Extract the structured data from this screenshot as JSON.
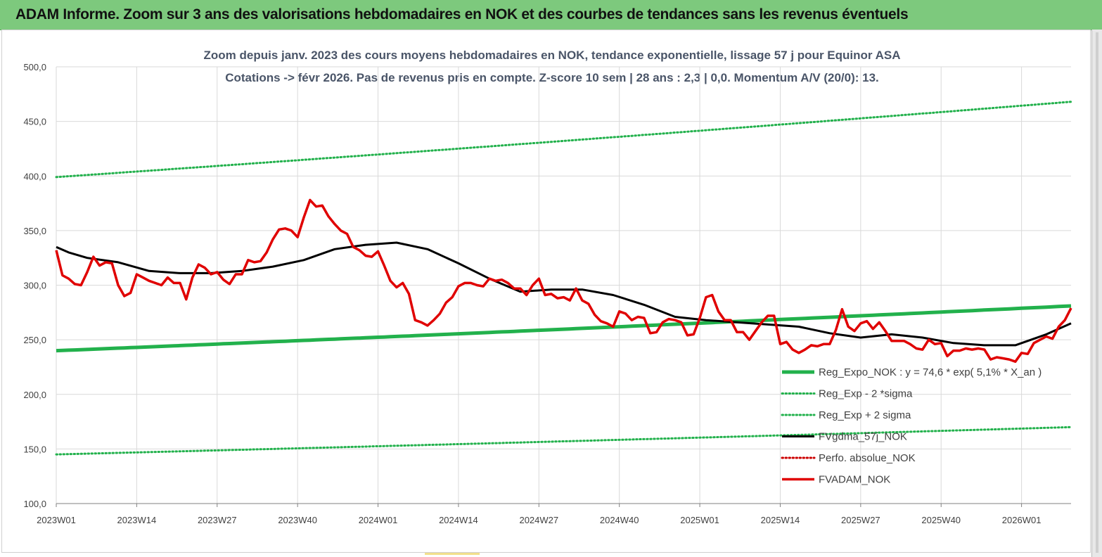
{
  "banner": {
    "title": "ADAM Informe. Zoom sur 3 ans des valorisations hebdomadaires en NOK et des courbes de tendances sans les revenus éventuels"
  },
  "chart_data": {
    "type": "line",
    "title_lines": [
      "Zoom depuis janv. 2023 des cours moyens hebdomadaires en NOK, tendance exponentielle, lissage 57 j pour Equinor ASA",
      "Cotations -> févr 2026.  Pas de revenus pris en compte. Z-score 10 sem  | 28 ans : 2,3 | 0,0. Momentum A/V (20/0): 13."
    ],
    "ylim": [
      100,
      500
    ],
    "yticks": [
      "100,0",
      "150,0",
      "200,0",
      "250,0",
      "300,0",
      "350,0",
      "400,0",
      "450,0",
      "500,0"
    ],
    "xticks": [
      "2023W01",
      "2023W14",
      "2023W27",
      "2023W40",
      "2024W01",
      "2024W14",
      "2024W27",
      "2024W40",
      "2025W01",
      "2025W14",
      "2025W27",
      "2025W40",
      "2026W01"
    ],
    "week_count": 164,
    "grid": true,
    "legend_position": "bottom-right",
    "series": [
      {
        "name": "Reg_Expo_NOK : y = 74,6 * exp( 5,1% *  X_an )",
        "color": "#22b14c",
        "style": "solid-thick",
        "x": [
          0,
          164
        ],
        "y": [
          240,
          281
        ]
      },
      {
        "name": "Reg_Exp - 2 *sigma",
        "color": "#22b14c",
        "style": "dotted",
        "x": [
          0,
          164
        ],
        "y": [
          145,
          170
        ]
      },
      {
        "name": "Reg_Exp + 2 sigma",
        "color": "#22b14c",
        "style": "dotted",
        "x": [
          0,
          164
        ],
        "y": [
          399,
          468
        ]
      },
      {
        "name": "FVgdma_57j_NOK",
        "color": "#000000",
        "style": "solid",
        "x": [
          0,
          2,
          5,
          10,
          15,
          20,
          25,
          30,
          35,
          40,
          45,
          50,
          55,
          60,
          65,
          70,
          75,
          80,
          85,
          90,
          95,
          100,
          105,
          110,
          115,
          120,
          125,
          130,
          135,
          140,
          145,
          150,
          155,
          160,
          164
        ],
        "y": [
          335,
          330,
          325,
          321,
          313,
          311,
          311,
          313,
          317,
          323,
          333,
          337,
          339,
          333,
          320,
          306,
          294,
          296,
          296,
          291,
          282,
          271,
          268,
          266,
          264,
          262,
          256,
          252,
          255,
          252,
          247,
          245,
          245,
          255,
          265
        ]
      },
      {
        "name": "Perfo. absolue_NOK",
        "color": "#cc0000",
        "style": "dotted",
        "x": [],
        "y": []
      },
      {
        "name": "FVADAM_NOK",
        "color": "#e00000",
        "style": "solid-thick",
        "x": [
          0,
          1,
          2,
          3,
          4,
          5,
          6,
          7,
          8,
          9,
          10,
          11,
          12,
          13,
          14,
          15,
          16,
          17,
          18,
          19,
          20,
          21,
          22,
          23,
          24,
          25,
          26,
          27,
          28,
          29,
          30,
          31,
          32,
          33,
          34,
          35,
          36,
          37,
          38,
          39,
          40,
          41,
          42,
          43,
          44,
          45,
          46,
          47,
          48,
          49,
          50,
          51,
          52,
          53,
          54,
          55,
          56,
          57,
          58,
          59,
          60,
          61,
          62,
          63,
          64,
          65,
          66,
          67,
          68,
          69,
          70,
          71,
          72,
          73,
          74,
          75,
          76,
          77,
          78,
          79,
          80,
          81,
          82,
          83,
          84,
          85,
          86,
          87,
          88,
          89,
          90,
          91,
          92,
          93,
          94,
          95,
          96,
          97,
          98,
          99,
          100,
          101,
          102,
          103,
          104,
          105,
          106,
          107,
          108,
          109,
          110,
          111,
          112,
          113,
          114,
          115,
          116,
          117,
          118,
          119,
          120,
          121,
          122,
          123,
          124,
          125,
          126,
          127,
          128,
          129,
          130,
          131,
          132,
          133,
          134,
          135,
          136,
          137,
          138,
          139,
          140,
          141,
          142,
          143,
          144,
          145,
          146,
          147,
          148,
          149,
          150,
          151,
          152,
          153,
          154,
          155,
          156,
          157,
          158,
          159,
          160,
          161,
          162,
          163,
          164
        ],
        "y": [
          332,
          309,
          306,
          301,
          300,
          312,
          326,
          318,
          321,
          320,
          300,
          290,
          293,
          310,
          307,
          304,
          302,
          300,
          307,
          302,
          302,
          287,
          307,
          319,
          316,
          310,
          312,
          305,
          301,
          310,
          310,
          323,
          321,
          322,
          330,
          342,
          351,
          352,
          350,
          344,
          362,
          378,
          372,
          373,
          363,
          356,
          350,
          347,
          335,
          332,
          327,
          326,
          331,
          318,
          304,
          298,
          302,
          292,
          268,
          266,
          263,
          268,
          274,
          284,
          289,
          299,
          302,
          302,
          300,
          299,
          306,
          304,
          305,
          302,
          297,
          297,
          291,
          300,
          306,
          291,
          292,
          288,
          289,
          286,
          297,
          286,
          283,
          273,
          267,
          265,
          262,
          276,
          274,
          268,
          271,
          270,
          256,
          257,
          266,
          269,
          268,
          266,
          254,
          255,
          270,
          289,
          291,
          276,
          268,
          268,
          257,
          257,
          250,
          258,
          266,
          272,
          272,
          246,
          248,
          241,
          238,
          241,
          245,
          244,
          246,
          246,
          259,
          278,
          262,
          258,
          265,
          267,
          260,
          266,
          258,
          249,
          249,
          249,
          246,
          242,
          241,
          250,
          246,
          247,
          235,
          240,
          240,
          242,
          241,
          242,
          241,
          232,
          234,
          233,
          232,
          230,
          238,
          237,
          247,
          250,
          253,
          251,
          262,
          268,
          279
        ]
      }
    ]
  }
}
